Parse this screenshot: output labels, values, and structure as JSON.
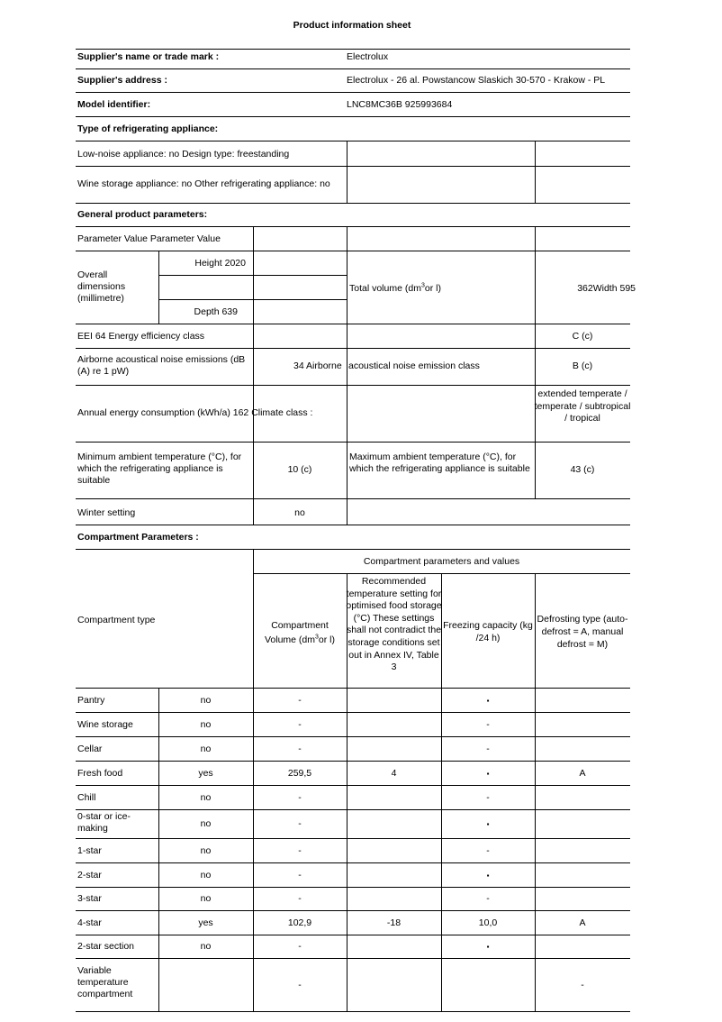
{
  "title": "Product information sheet",
  "supplier": {
    "name_label": "Supplier's name or trade mark :",
    "name_value": "Electrolux",
    "address_label": "Supplier's address :",
    "address_value": "Electrolux - 26 al. Powstancow Slaskich 30-570 - Krakow - PL",
    "model_label": "Model identifier:",
    "model_value": "LNC8MC36B 925993684"
  },
  "type": {
    "heading": "Type of refrigerating appliance:",
    "row1": "Low-noise appliance: no Design type: freestanding",
    "row2": "Wine storage appliance: no Other refrigerating appliance: no"
  },
  "general": {
    "heading": "General product parameters:",
    "param_header": "Parameter Value Parameter Value",
    "overall_dims": "Overall dimensions (millimetre)",
    "height": "Height 2020",
    "depth": "Depth 639",
    "total_volume": "Total volume (dm",
    "total_volume_sup": "3",
    "total_volume_end": "or l)",
    "total_volume_value": "362Width 595",
    "eei": "EEI 64 Energy efficiency class",
    "eei_value": "C (c)",
    "noise": "Airborne acoustical noise emissions (dB (A) re 1 pW)",
    "noise_mid": "34 Airborne",
    "noise_class": "acoustical noise emission class",
    "noise_value": "B (c)",
    "annual": "Annual energy consumption (kWh/a) 162 Climate class :",
    "climate_value": "extended temperate / temperate / subtropical / tropical",
    "min_temp": "Minimum ambient temperature (°C), for which the refrigerating appliance is suitable",
    "min_value": "10 (c)",
    "max_temp": "Maximum ambient temperature (°C), for which the refrigerating appliance is suitable",
    "max_value": "43 (c)",
    "winter": "Winter setting",
    "winter_value": "no"
  },
  "compartments": {
    "heading": "Compartment Parameters :",
    "type_header": "Compartment type",
    "group_header": "Compartment parameters and values",
    "col_volume": "Compartment Volume (dm",
    "col_volume_sup": "3",
    "col_volume_end": "or l)",
    "col_temp": "Recommended temperature setting for optimised food storage (°C) These settings shall not contradict the storage conditions set out in Annex IV, Table 3",
    "col_freezing": "Freezing capacity (kg /24 h)",
    "col_defrost": "Defrosting type (auto-defrost = A, manual defrost = M)",
    "rows": [
      {
        "type": "Pantry",
        "present": "no",
        "volume": "-",
        "temp": "",
        "freezing": "▪",
        "defrost": ""
      },
      {
        "type": "Wine storage",
        "present": "no",
        "volume": "-",
        "temp": "",
        "freezing": "-",
        "defrost": ""
      },
      {
        "type": "Cellar",
        "present": "no",
        "volume": "-",
        "temp": "",
        "freezing": "-",
        "defrost": ""
      },
      {
        "type": "Fresh food",
        "present": "yes",
        "volume": "259,5",
        "temp": "4",
        "freezing": "▪",
        "defrost": "A"
      },
      {
        "type": "Chill",
        "present": "no",
        "volume": "-",
        "temp": "",
        "freezing": "-",
        "defrost": ""
      },
      {
        "type": "0-star or ice-making",
        "present": "no",
        "volume": "-",
        "temp": "",
        "freezing": "▪",
        "defrost": ""
      },
      {
        "type": "1-star",
        "present": "no",
        "volume": "-",
        "temp": "",
        "freezing": "-",
        "defrost": ""
      },
      {
        "type": "2-star",
        "present": "no",
        "volume": "-",
        "temp": "",
        "freezing": "▪",
        "defrost": ""
      },
      {
        "type": "3-star",
        "present": "no",
        "volume": "-",
        "temp": "",
        "freezing": "-",
        "defrost": ""
      },
      {
        "type": "4-star",
        "present": "yes",
        "volume": "102,9",
        "temp": "-18",
        "freezing": "10,0",
        "defrost": "A"
      },
      {
        "type": "2-star section",
        "present": "no",
        "volume": "-",
        "temp": "",
        "freezing": "▪",
        "defrost": ""
      },
      {
        "type": "Variable temperature compartment",
        "present": "",
        "volume": "-",
        "temp": "",
        "freezing": "",
        "defrost": "-"
      }
    ]
  }
}
